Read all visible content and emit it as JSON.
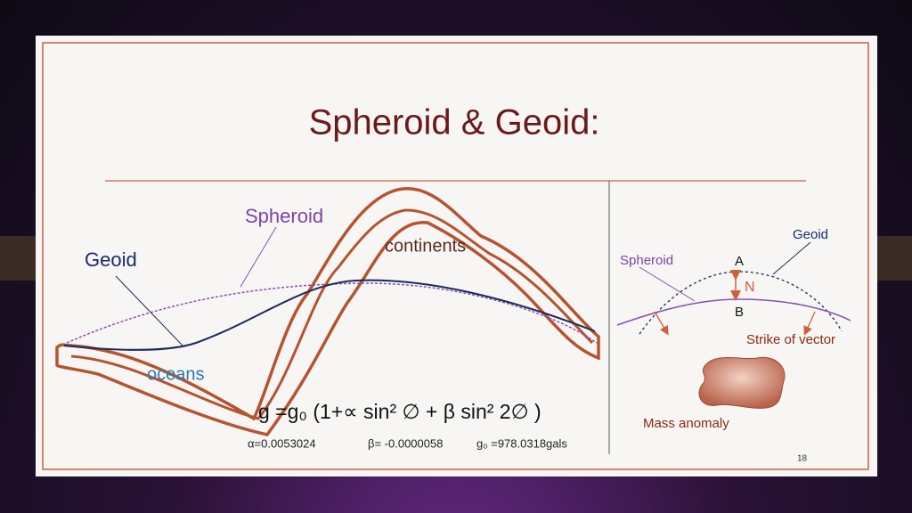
{
  "slide": {
    "title": "Spheroid & Geoid:",
    "left_diagram": {
      "spheroid_label": "Spheroid",
      "geoid_label": "Geoid",
      "continents_label": "continents",
      "oceans_label": "oceans"
    },
    "formula": "g =g₀ (1+∝ sin² ∅ + β sin² 2∅ )",
    "constants": [
      "α=0.0053024",
      "β= -0.0000058",
      "g₀ =978.0318gals"
    ],
    "right_diagram": {
      "geoid_label": "Geoid",
      "spheroid_label": "Spheroid",
      "point_a": "A",
      "separation": "N",
      "point_b": "B",
      "strike_label": "Strike of vector",
      "mass_label": "Mass anomaly"
    },
    "page_number": "18"
  }
}
